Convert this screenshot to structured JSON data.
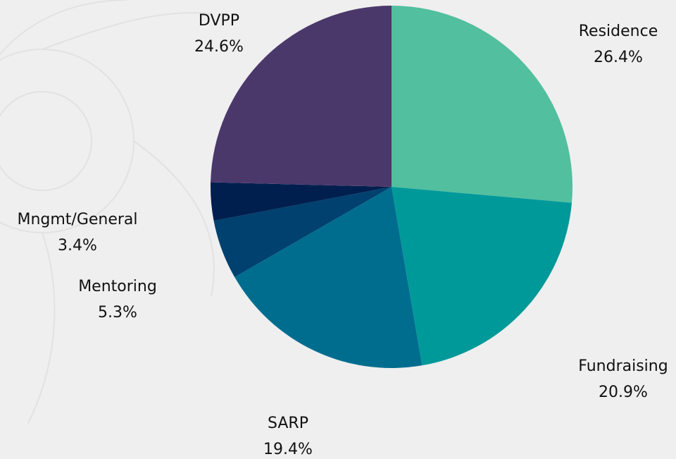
{
  "chart_data": {
    "type": "pie",
    "categories": [
      "Residence",
      "Fundraising",
      "SARP",
      "Mentoring",
      "Mngmt/General",
      "DVPP"
    ],
    "values": [
      26.4,
      20.9,
      19.4,
      5.3,
      3.4,
      24.6
    ],
    "value_labels": [
      "26.4%",
      "20.9%",
      "19.4%",
      "5.3%",
      "3.4%",
      "24.6%"
    ],
    "colors": [
      "#52bf9f",
      "#00999a",
      "#006d8f",
      "#00416f",
      "#001f4f",
      "#4b386b"
    ]
  }
}
